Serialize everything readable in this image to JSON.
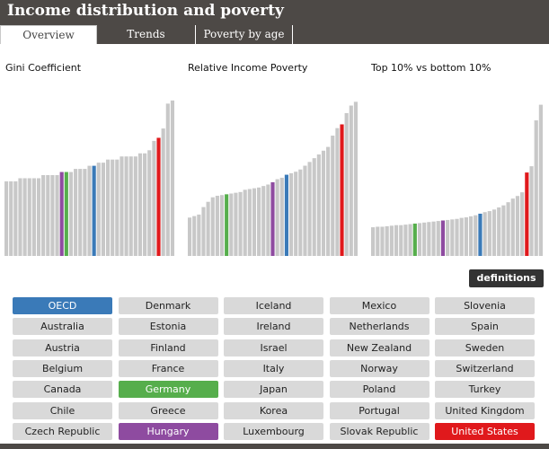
{
  "header": {
    "title": "Income distribution and poverty"
  },
  "tabs": [
    "Overview",
    "Trends",
    "Poverty by age"
  ],
  "charts": [
    {
      "title": "Gini Coefficient"
    },
    {
      "title": "Relative Income Poverty"
    },
    {
      "title": "Top 10% vs bottom 10%"
    }
  ],
  "definitions_label": "definitions",
  "countries": [
    "OECD",
    "Australia",
    "Austria",
    "Belgium",
    "Canada",
    "Chile",
    "Czech Republic",
    "Denmark",
    "Estonia",
    "Finland",
    "France",
    "Germany",
    "Greece",
    "Hungary",
    "Iceland",
    "Ireland",
    "Israel",
    "Italy",
    "Japan",
    "Korea",
    "Luxembourg",
    "Mexico",
    "Netherlands",
    "New Zealand",
    "Norway",
    "Poland",
    "Portugal",
    "Slovak Republic",
    "Slovenia",
    "Spain",
    "Sweden",
    "Switzerland",
    "Turkey",
    "United Kingdom",
    "United States"
  ],
  "highlight_colors": {
    "OECD": "#3a7ab8",
    "Germany": "#56ae4c",
    "Hungary": "#8e4ba0",
    "United States": "#e0191c",
    "default": "#c8c8c8"
  },
  "chart_data": [
    {
      "type": "bar",
      "title": "Gini Coefficient",
      "values": [
        0.24,
        0.24,
        0.24,
        0.25,
        0.25,
        0.25,
        0.25,
        0.25,
        0.26,
        0.26,
        0.26,
        0.26,
        0.27,
        0.27,
        0.27,
        0.28,
        0.28,
        0.28,
        0.29,
        0.29,
        0.3,
        0.3,
        0.31,
        0.31,
        0.31,
        0.32,
        0.32,
        0.32,
        0.32,
        0.33,
        0.33,
        0.34,
        0.37,
        0.38,
        0.41,
        0.49,
        0.5
      ],
      "highlights": {
        "12": "Hungary",
        "13": "Germany",
        "19": "OECD",
        "33": "United States"
      },
      "ylim": [
        0,
        0.52
      ]
    },
    {
      "type": "bar",
      "title": "Relative Income Poverty",
      "values": [
        0.051,
        0.053,
        0.055,
        0.065,
        0.072,
        0.078,
        0.08,
        0.081,
        0.082,
        0.083,
        0.084,
        0.085,
        0.088,
        0.089,
        0.09,
        0.091,
        0.093,
        0.095,
        0.098,
        0.102,
        0.104,
        0.108,
        0.11,
        0.112,
        0.115,
        0.12,
        0.125,
        0.13,
        0.135,
        0.14,
        0.145,
        0.16,
        0.17,
        0.175,
        0.19,
        0.2,
        0.205
      ],
      "highlights": {
        "8": "Germany",
        "18": "Hungary",
        "21": "OECD",
        "33": "United States"
      },
      "ylim": [
        0,
        0.215
      ]
    },
    {
      "type": "bar",
      "title": "Top 10% vs bottom 10%",
      "values": [
        5.5,
        5.6,
        5.6,
        5.7,
        5.8,
        5.9,
        5.9,
        6.0,
        6.1,
        6.2,
        6.3,
        6.4,
        6.5,
        6.6,
        6.7,
        6.8,
        6.9,
        7.0,
        7.1,
        7.3,
        7.4,
        7.6,
        7.8,
        8.1,
        8.4,
        8.6,
        8.9,
        9.3,
        9.7,
        10.3,
        11.0,
        11.5,
        12.2,
        16.0,
        17.2,
        26.0,
        29.0
      ],
      "highlights": {
        "9": "Germany",
        "15": "Hungary",
        "23": "OECD",
        "33": "United States"
      },
      "ylim": [
        0,
        31
      ]
    }
  ]
}
